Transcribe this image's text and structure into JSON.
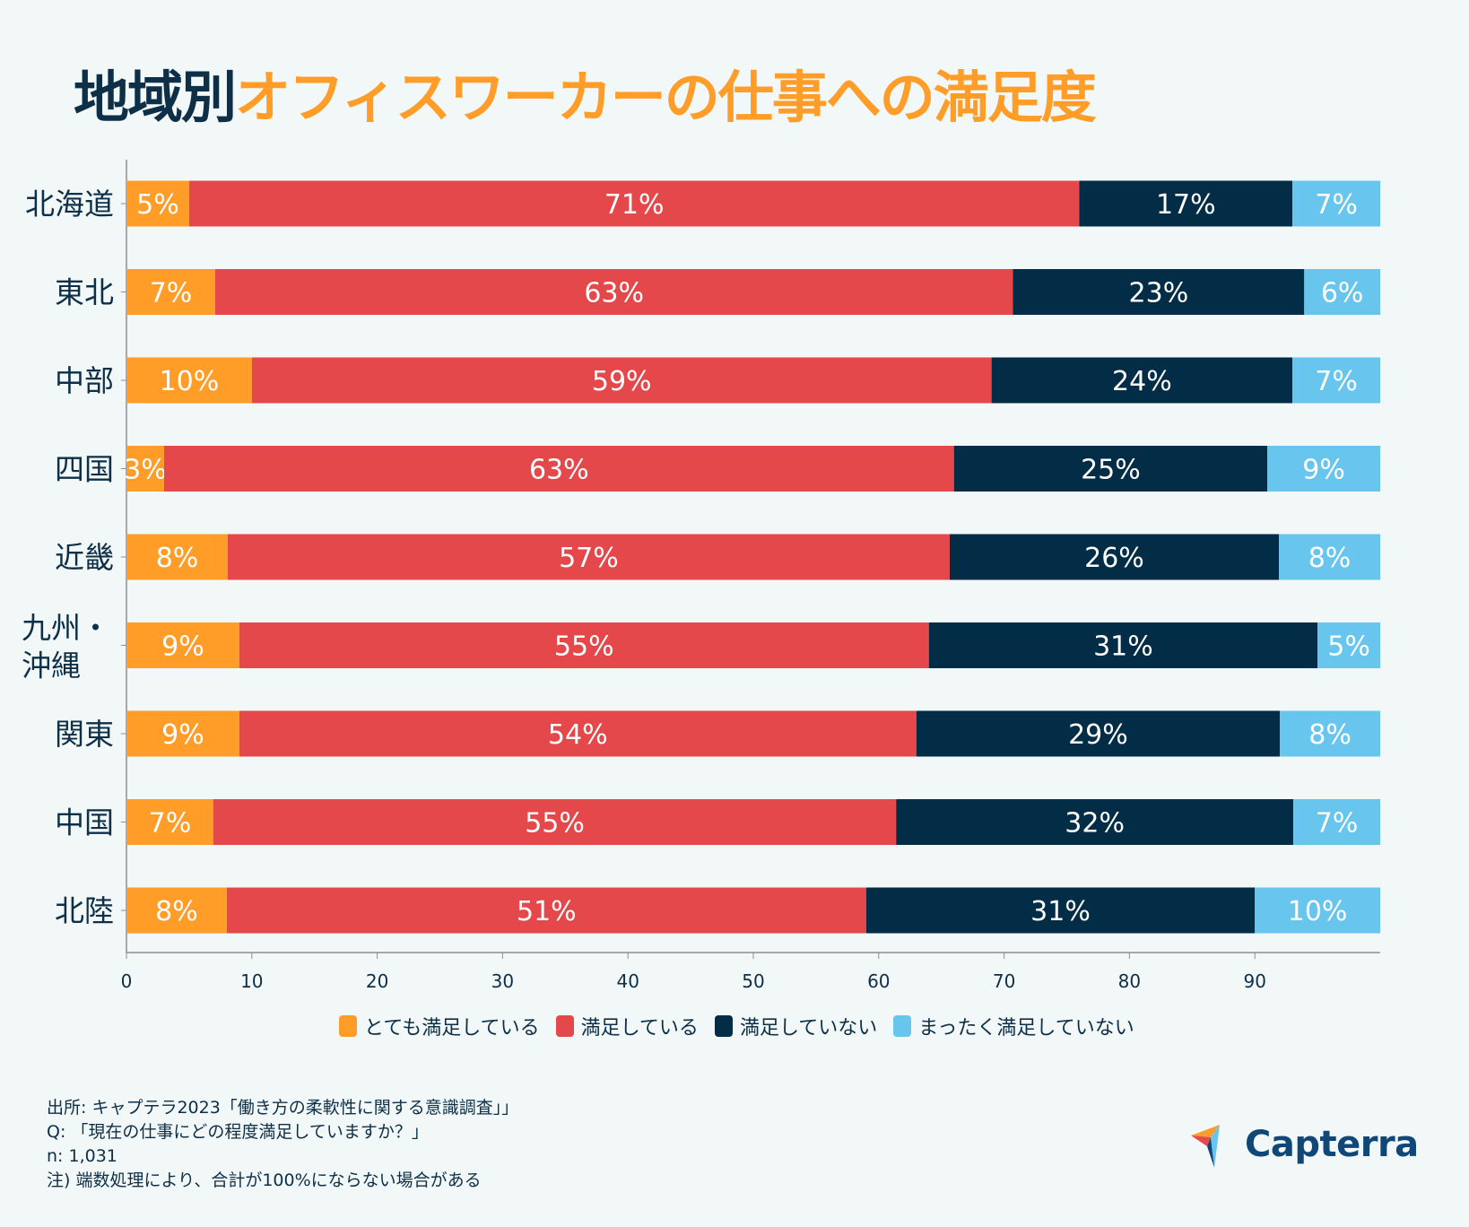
{
  "title": {
    "part1": "地域別",
    "part2": "オフィスワーカーの仕事への満足度"
  },
  "chart_data": {
    "type": "bar",
    "orientation": "horizontal",
    "stacked": true,
    "title": "地域別オフィスワーカーの仕事への満足度",
    "xlabel": "",
    "ylabel": "",
    "xlim": [
      0,
      100
    ],
    "xticks": [
      0,
      10,
      20,
      30,
      40,
      50,
      60,
      70,
      80,
      90
    ],
    "grid": false,
    "legend_position": "bottom",
    "categories": [
      "北海道",
      "東北",
      "中部",
      "四国",
      "近畿",
      "九州・沖縄",
      "関東",
      "中国",
      "北陸"
    ],
    "category_display": [
      [
        "北海道"
      ],
      [
        "東北"
      ],
      [
        "中部"
      ],
      [
        "四国"
      ],
      [
        "近畿"
      ],
      [
        "九州・",
        "沖縄"
      ],
      [
        "関東"
      ],
      [
        "中国"
      ],
      [
        "北陸"
      ]
    ],
    "series": [
      {
        "name": "とても満足している",
        "color": "#ff9d28",
        "values": [
          5,
          7,
          10,
          3,
          8,
          9,
          9,
          7,
          8
        ]
      },
      {
        "name": "満足している",
        "color": "#e5484a",
        "values": [
          71,
          63,
          59,
          63,
          57,
          55,
          54,
          55,
          51
        ]
      },
      {
        "name": "満足していない",
        "color": "#032d47",
        "values": [
          17,
          23,
          24,
          25,
          26,
          31,
          29,
          32,
          31
        ]
      },
      {
        "name": "まったく満足していない",
        "color": "#68c5ee",
        "values": [
          7,
          6,
          7,
          9,
          8,
          5,
          8,
          7,
          10
        ]
      }
    ],
    "data_label_suffix": "%"
  },
  "legend": [
    {
      "label": "とても満足している",
      "color": "#ff9d28"
    },
    {
      "label": "満足している",
      "color": "#e5484a"
    },
    {
      "label": "満足していない",
      "color": "#032d47"
    },
    {
      "label": "まったく満足していない",
      "color": "#68c5ee"
    }
  ],
  "notes": {
    "source": "出所: キャプテラ2023「働き方の柔軟性に関する意識調査」」",
    "question": "Q: 「現在の仕事にどの程度満足していますか？」",
    "sample": "n: 1,031",
    "note": "注) 端数処理により、合計が100%にならない場合がある"
  },
  "logo": {
    "text": "Capterra",
    "colors": [
      "#ff9d28",
      "#e5484a",
      "#0f4778",
      "#68c5ee"
    ]
  }
}
